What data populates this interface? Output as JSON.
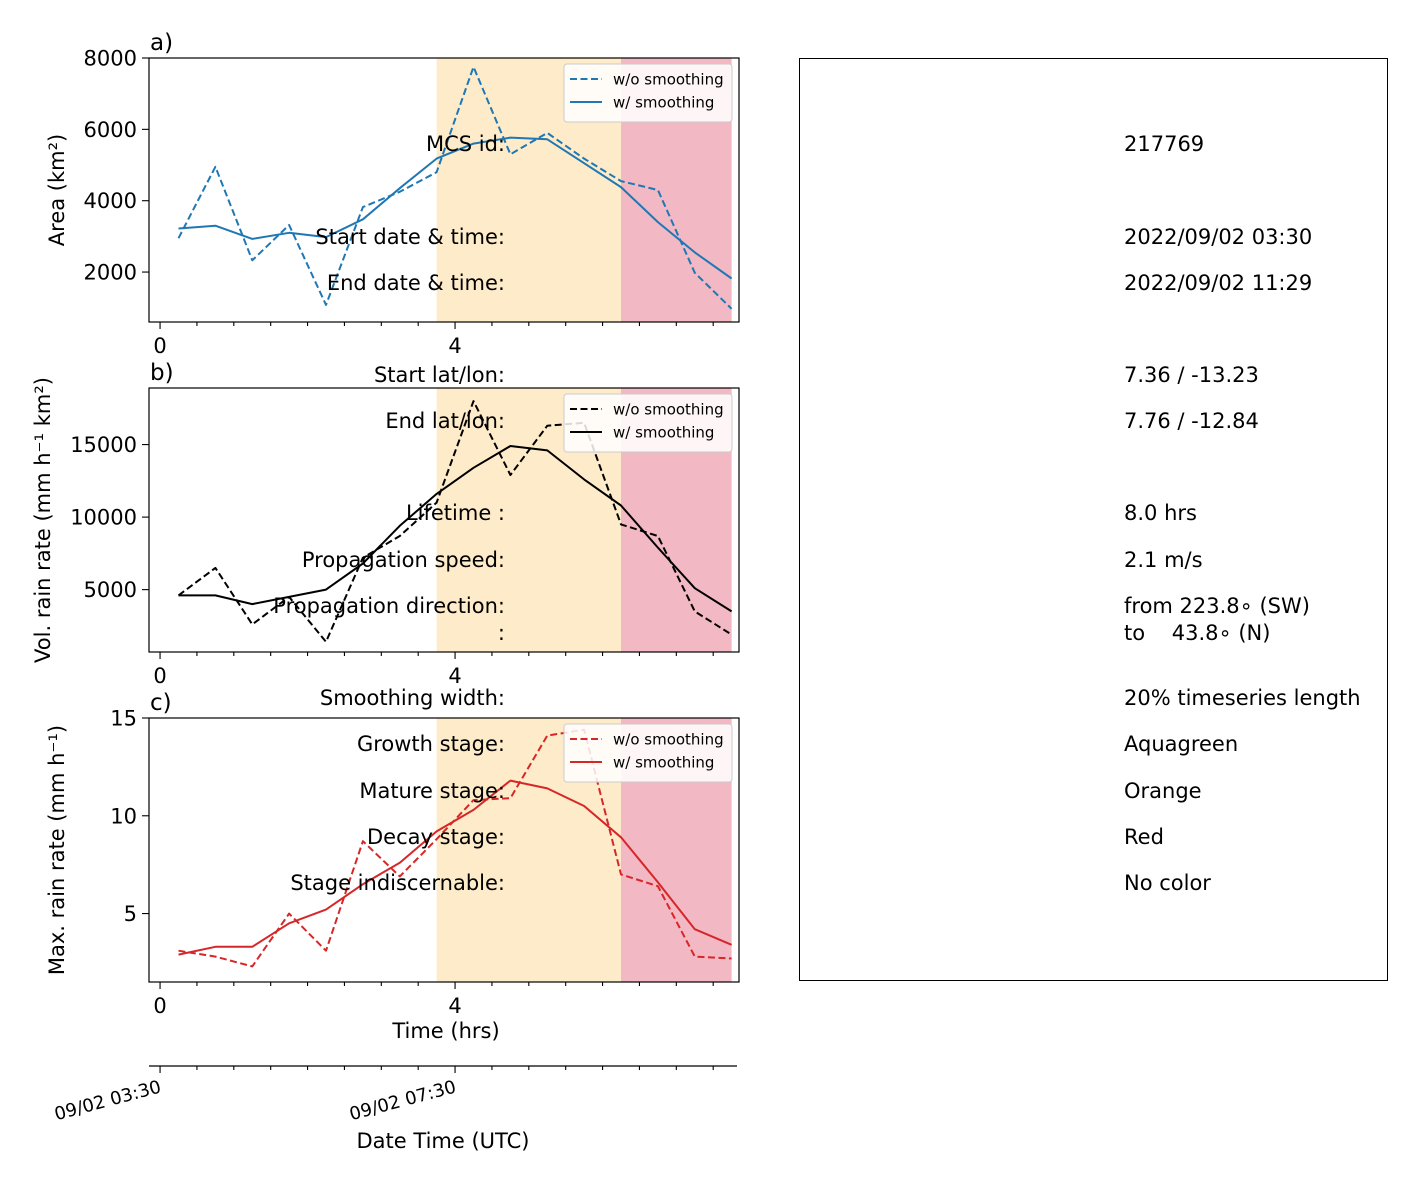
{
  "colors": {
    "mature_span": "#fdebc9",
    "decay_span": "#f2b8c4",
    "area_line": "#1f77b4",
    "volrain_line": "#000000",
    "maxrain_line": "#d62728"
  },
  "chart_data": [
    {
      "type": "line",
      "panel_letter": "a)",
      "ylabel": "Area  (km²)",
      "xlim": [
        -0.15,
        7.85
      ],
      "ylim": [
        600,
        8000
      ],
      "yticks": [
        2000,
        4000,
        6000,
        8000
      ],
      "xticks": [
        0,
        4
      ],
      "stage_spans": [
        {
          "stage": "Mature",
          "x0": 3.75,
          "x1": 6.25
        },
        {
          "stage": "Decay",
          "x0": 6.25,
          "x1": 7.75
        }
      ],
      "legend": "top-right",
      "x": [
        0.25,
        0.75,
        1.25,
        1.75,
        2.25,
        2.75,
        3.25,
        3.75,
        4.25,
        4.75,
        5.25,
        5.75,
        6.25,
        6.75,
        7.25,
        7.75
      ],
      "series": [
        {
          "name": "w/o smoothing",
          "style": "dashed",
          "values": [
            2950,
            4950,
            2330,
            3320,
            1080,
            3820,
            4250,
            4800,
            7750,
            5300,
            5900,
            5180,
            4550,
            4300,
            1980,
            970
          ]
        },
        {
          "name": "w/ smoothing",
          "style": "solid",
          "values": [
            3220,
            3300,
            2930,
            3100,
            2980,
            3480,
            4350,
            5180,
            5600,
            5770,
            5720,
            5050,
            4380,
            3400,
            2550,
            1820
          ]
        }
      ]
    },
    {
      "type": "line",
      "panel_letter": "b)",
      "ylabel": "Vol. rain rate (mm h⁻¹ km²)",
      "xlim": [
        -0.15,
        7.85
      ],
      "ylim": [
        700,
        18900
      ],
      "yticks": [
        5000,
        10000,
        15000
      ],
      "xticks": [
        0,
        4
      ],
      "stage_spans": [
        {
          "stage": "Mature",
          "x0": 3.75,
          "x1": 6.25
        },
        {
          "stage": "Decay",
          "x0": 6.25,
          "x1": 7.75
        }
      ],
      "legend": "top-right",
      "x": [
        0.25,
        0.75,
        1.25,
        1.75,
        2.25,
        2.75,
        3.25,
        3.75,
        4.25,
        4.75,
        5.25,
        5.75,
        6.25,
        6.75,
        7.25,
        7.75
      ],
      "series": [
        {
          "name": "w/o smoothing",
          "style": "dashed",
          "values": [
            4600,
            6500,
            2600,
            4500,
            1400,
            7200,
            8700,
            11000,
            18000,
            12900,
            16300,
            16500,
            9500,
            8700,
            3500,
            1900
          ]
        },
        {
          "name": "w/ smoothing",
          "style": "solid",
          "values": [
            4600,
            4600,
            4000,
            4500,
            5000,
            6800,
            9400,
            11600,
            13400,
            14900,
            14600,
            12600,
            10800,
            7900,
            5100,
            3500
          ]
        }
      ]
    },
    {
      "type": "line",
      "panel_letter": "c)",
      "ylabel": "Max. rain rate  (mm h⁻¹)",
      "xlim": [
        -0.15,
        7.85
      ],
      "ylim": [
        1.5,
        15
      ],
      "yticks": [
        5,
        10,
        15
      ],
      "xticks": [
        0,
        4
      ],
      "xlabel": "Time (hrs)",
      "stage_spans": [
        {
          "stage": "Mature",
          "x0": 3.75,
          "x1": 6.25
        },
        {
          "stage": "Decay",
          "x0": 6.25,
          "x1": 7.75
        }
      ],
      "legend": "top-right",
      "x": [
        0.25,
        0.75,
        1.25,
        1.75,
        2.25,
        2.75,
        3.25,
        3.75,
        4.25,
        4.75,
        5.25,
        5.75,
        6.25,
        6.75,
        7.25,
        7.75
      ],
      "series": [
        {
          "name": "w/o smoothing",
          "style": "dashed",
          "values": [
            3.1,
            2.8,
            2.3,
            5.0,
            3.1,
            8.7,
            6.9,
            8.8,
            10.8,
            10.9,
            14.1,
            14.4,
            7.0,
            6.4,
            2.8,
            2.7
          ]
        },
        {
          "name": "w/ smoothing",
          "style": "solid",
          "values": [
            2.9,
            3.3,
            3.3,
            4.5,
            5.2,
            6.5,
            7.6,
            9.2,
            10.3,
            11.8,
            11.4,
            10.5,
            8.9,
            6.6,
            4.2,
            3.4
          ]
        }
      ]
    }
  ],
  "secondary_axis": {
    "xlabel": "Date Time (UTC)",
    "tick_labels": [
      "09/02 03:30",
      "09/02 07:30"
    ]
  },
  "info": {
    "rows": [
      {
        "label": "MCS id:",
        "value": "217769"
      },
      {
        "label": "Start date & time:",
        "value": "2022/09/02 03:30"
      },
      {
        "label": "End date & time:",
        "value": "2022/09/02 11:29"
      },
      {
        "label": "Start lat/lon:",
        "value": "7.36 / -13.23"
      },
      {
        "label": "End lat/lon:",
        "value": "7.76 / -12.84"
      },
      {
        "label": "Lifetime :",
        "value": "8.0 hrs"
      },
      {
        "label": "Propagation speed:",
        "value": "2.1 m/s"
      },
      {
        "label": "Propagation direction:",
        "value": "from 223.8∘ (SW)"
      },
      {
        "label": ":",
        "value": "to    43.8∘ (N)"
      },
      {
        "label": "Smoothing width:",
        "value": "20% timeseries length"
      },
      {
        "label": "Growth stage:",
        "value": "Aquagreen"
      },
      {
        "label": "Mature stage:",
        "value": "Orange"
      },
      {
        "label": "Decay stage:",
        "value": "Red"
      },
      {
        "label": "Stage indiscernable:",
        "value": "No color"
      }
    ]
  }
}
